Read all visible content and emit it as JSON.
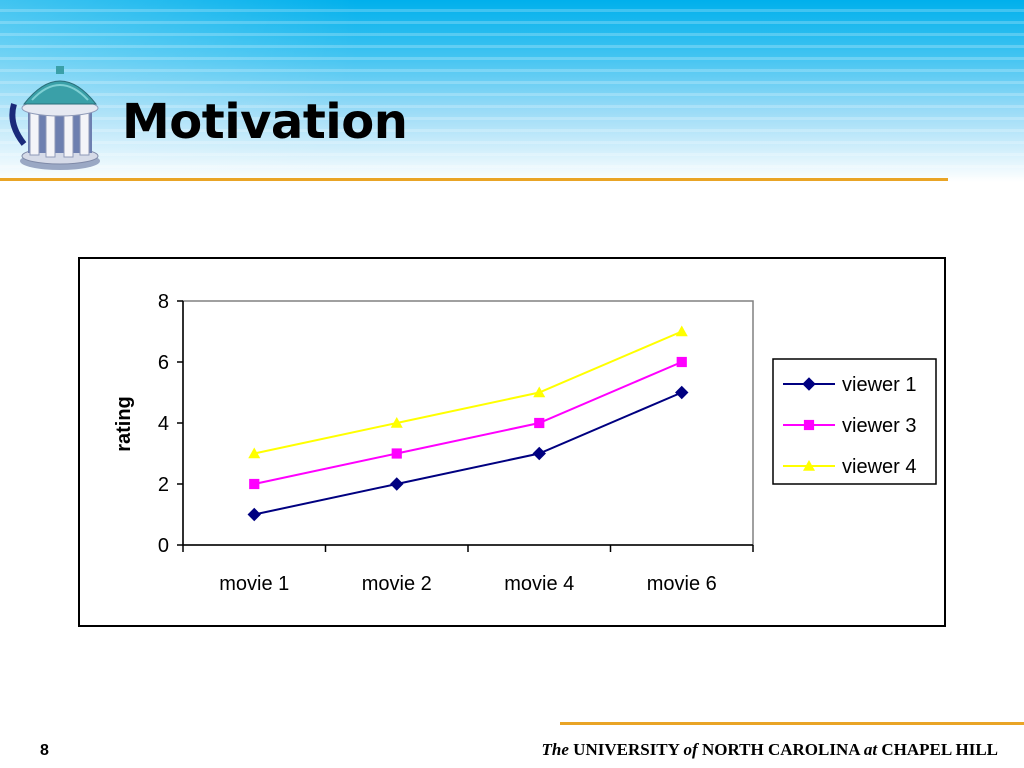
{
  "slide": {
    "title": "Motivation",
    "page_number": "8",
    "footer": {
      "the": "The",
      "university": "UNIVERSITY",
      "of": "of",
      "north_carolina": "NORTH CAROLINA",
      "at": "at",
      "chapel_hill": "CHAPEL HILL"
    }
  },
  "colors": {
    "accent_rule": "#e9a426",
    "header_blue": "#00b0ec"
  },
  "chart_data": {
    "type": "line",
    "title": "",
    "xlabel": "",
    "ylabel": "rating",
    "categories": [
      "movie 1",
      "movie 2",
      "movie 4",
      "movie 6"
    ],
    "ylim": [
      0,
      8
    ],
    "yticks": [
      0,
      2,
      4,
      6,
      8
    ],
    "grid": false,
    "legend_position": "right",
    "series": [
      {
        "name": "viewer 1",
        "values": [
          1,
          2,
          3,
          5
        ],
        "color": "#000080",
        "marker": "diamond"
      },
      {
        "name": "viewer 3",
        "values": [
          2,
          3,
          4,
          6
        ],
        "color": "#ff00ff",
        "marker": "square"
      },
      {
        "name": "viewer 4",
        "values": [
          3,
          4,
          5,
          7
        ],
        "color": "#ffff00",
        "marker": "triangle"
      }
    ]
  }
}
